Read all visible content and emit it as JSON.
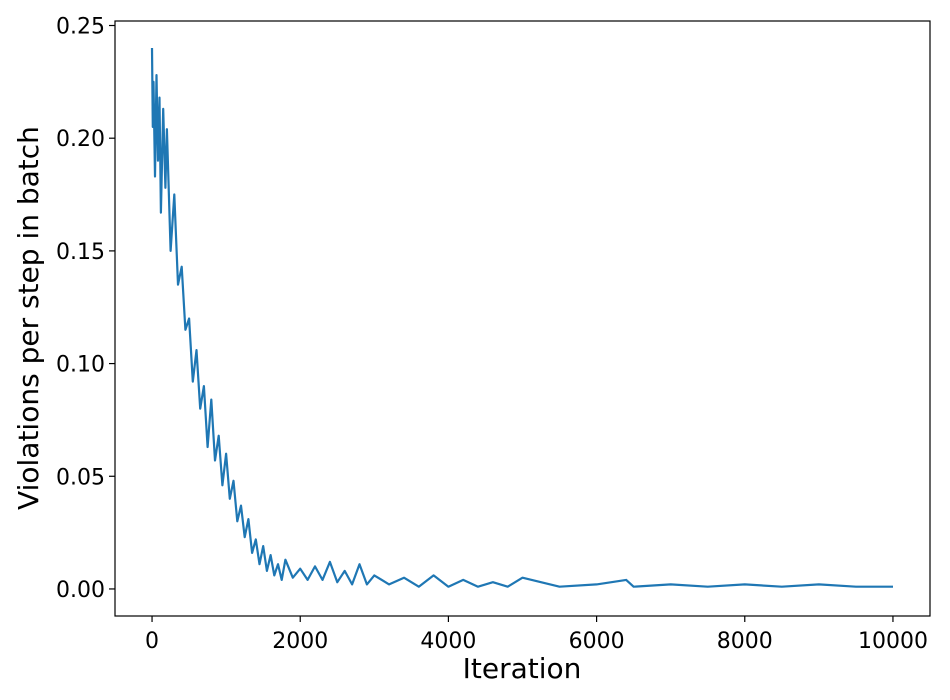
{
  "chart_data": {
    "type": "line",
    "title": "",
    "xlabel": "Iteration",
    "ylabel": "Violations per step in batch",
    "xlim": [
      -500,
      10500
    ],
    "ylim": [
      -0.012,
      0.252
    ],
    "xticks": [
      0,
      2000,
      4000,
      6000,
      8000,
      10000
    ],
    "xtick_labels": [
      "0",
      "2000",
      "4000",
      "6000",
      "8000",
      "10000"
    ],
    "yticks": [
      0.0,
      0.05,
      0.1,
      0.15,
      0.2,
      0.25
    ],
    "ytick_labels": [
      "0.00",
      "0.05",
      "0.10",
      "0.15",
      "0.20",
      "0.25"
    ],
    "grid": false,
    "line_color": "#1f77b4",
    "series": [
      {
        "x": [
          0,
          10,
          20,
          40,
          60,
          80,
          100,
          120,
          150,
          180,
          200,
          250,
          300,
          350,
          400,
          450,
          500,
          550,
          600,
          650,
          700,
          750,
          800,
          850,
          900,
          950,
          1000,
          1050,
          1100,
          1150,
          1200,
          1250,
          1300,
          1350,
          1400,
          1450,
          1500,
          1550,
          1600,
          1650,
          1700,
          1750,
          1800,
          1900,
          2000,
          2100,
          2200,
          2300,
          2400,
          2500,
          2600,
          2700,
          2800,
          2900,
          3000,
          3200,
          3400,
          3600,
          3800,
          4000,
          4200,
          4400,
          4600,
          4800,
          5000,
          5500,
          6000,
          6400,
          6500,
          7000,
          7500,
          8000,
          8500,
          9000,
          9500,
          10000
        ],
        "y": [
          0.24,
          0.205,
          0.225,
          0.183,
          0.228,
          0.19,
          0.218,
          0.167,
          0.213,
          0.178,
          0.204,
          0.15,
          0.175,
          0.135,
          0.143,
          0.115,
          0.12,
          0.092,
          0.106,
          0.08,
          0.09,
          0.063,
          0.084,
          0.057,
          0.068,
          0.046,
          0.06,
          0.04,
          0.048,
          0.03,
          0.037,
          0.023,
          0.031,
          0.016,
          0.022,
          0.011,
          0.019,
          0.008,
          0.015,
          0.006,
          0.011,
          0.004,
          0.013,
          0.005,
          0.009,
          0.004,
          0.01,
          0.004,
          0.012,
          0.003,
          0.008,
          0.002,
          0.011,
          0.002,
          0.006,
          0.002,
          0.005,
          0.001,
          0.006,
          0.001,
          0.004,
          0.001,
          0.003,
          0.001,
          0.005,
          0.001,
          0.002,
          0.004,
          0.001,
          0.002,
          0.001,
          0.002,
          0.001,
          0.002,
          0.001,
          0.001
        ]
      }
    ]
  }
}
